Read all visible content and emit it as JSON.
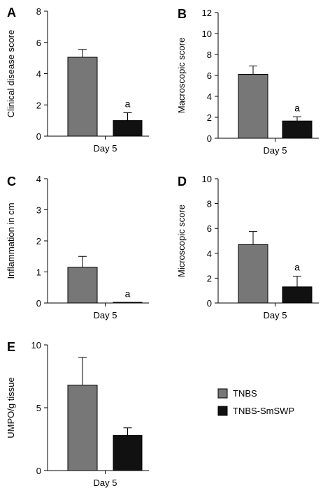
{
  "legend": {
    "position": "right of panel E",
    "entries": [
      {
        "label": "TNBS",
        "color": "#777777"
      },
      {
        "label": "TNBS-SmSWP",
        "color": "#111111"
      }
    ]
  },
  "chart_data": [
    {
      "panel": "A",
      "type": "bar",
      "categories": [
        "Day 5"
      ],
      "series": [
        {
          "color": "#777777",
          "values": [
            5.05
          ],
          "error": [
            0.5
          ],
          "annotation": ""
        },
        {
          "color": "#111111",
          "values": [
            1.0
          ],
          "error": [
            0.5
          ],
          "annotation": "a"
        }
      ],
      "ylabel": "Clinical disease score",
      "ylim": [
        0,
        8
      ],
      "yticks": [
        0,
        2,
        4,
        6,
        8
      ]
    },
    {
      "panel": "B",
      "type": "bar",
      "categories": [
        "Day 5"
      ],
      "series": [
        {
          "color": "#777777",
          "values": [
            6.1
          ],
          "error": [
            0.8
          ],
          "annotation": ""
        },
        {
          "color": "#111111",
          "values": [
            1.65
          ],
          "error": [
            0.4
          ],
          "annotation": "a"
        }
      ],
      "ylabel": "Macroscopic score",
      "ylim": [
        0,
        12
      ],
      "yticks": [
        0,
        2,
        4,
        6,
        8,
        10,
        12
      ]
    },
    {
      "panel": "C",
      "type": "bar",
      "categories": [
        "Day 5"
      ],
      "series": [
        {
          "color": "#777777",
          "values": [
            1.15
          ],
          "error": [
            0.35
          ],
          "annotation": ""
        },
        {
          "color": "#111111",
          "values": [
            0.01
          ],
          "error": [
            0
          ],
          "annotation": "a"
        }
      ],
      "ylabel": "Inflammation in cm",
      "ylim": [
        0,
        4
      ],
      "yticks": [
        0,
        1,
        2,
        3,
        4
      ]
    },
    {
      "panel": "D",
      "type": "bar",
      "categories": [
        "Day 5"
      ],
      "series": [
        {
          "color": "#777777",
          "values": [
            4.7
          ],
          "error": [
            1.05
          ],
          "annotation": ""
        },
        {
          "color": "#111111",
          "values": [
            1.3
          ],
          "error": [
            0.85
          ],
          "annotation": "a"
        }
      ],
      "ylabel": "Microscopic score",
      "ylim": [
        0,
        10
      ],
      "yticks": [
        0,
        2,
        4,
        6,
        8,
        10
      ]
    },
    {
      "panel": "E",
      "type": "bar",
      "categories": [
        "Day 5"
      ],
      "series": [
        {
          "color": "#777777",
          "values": [
            6.8
          ],
          "error": [
            2.2
          ],
          "annotation": ""
        },
        {
          "color": "#111111",
          "values": [
            2.8
          ],
          "error": [
            0.6
          ],
          "annotation": ""
        }
      ],
      "ylabel": "UMPO/g tissue",
      "ylim": [
        0,
        10
      ],
      "yticks": [
        0,
        5,
        10
      ]
    }
  ]
}
